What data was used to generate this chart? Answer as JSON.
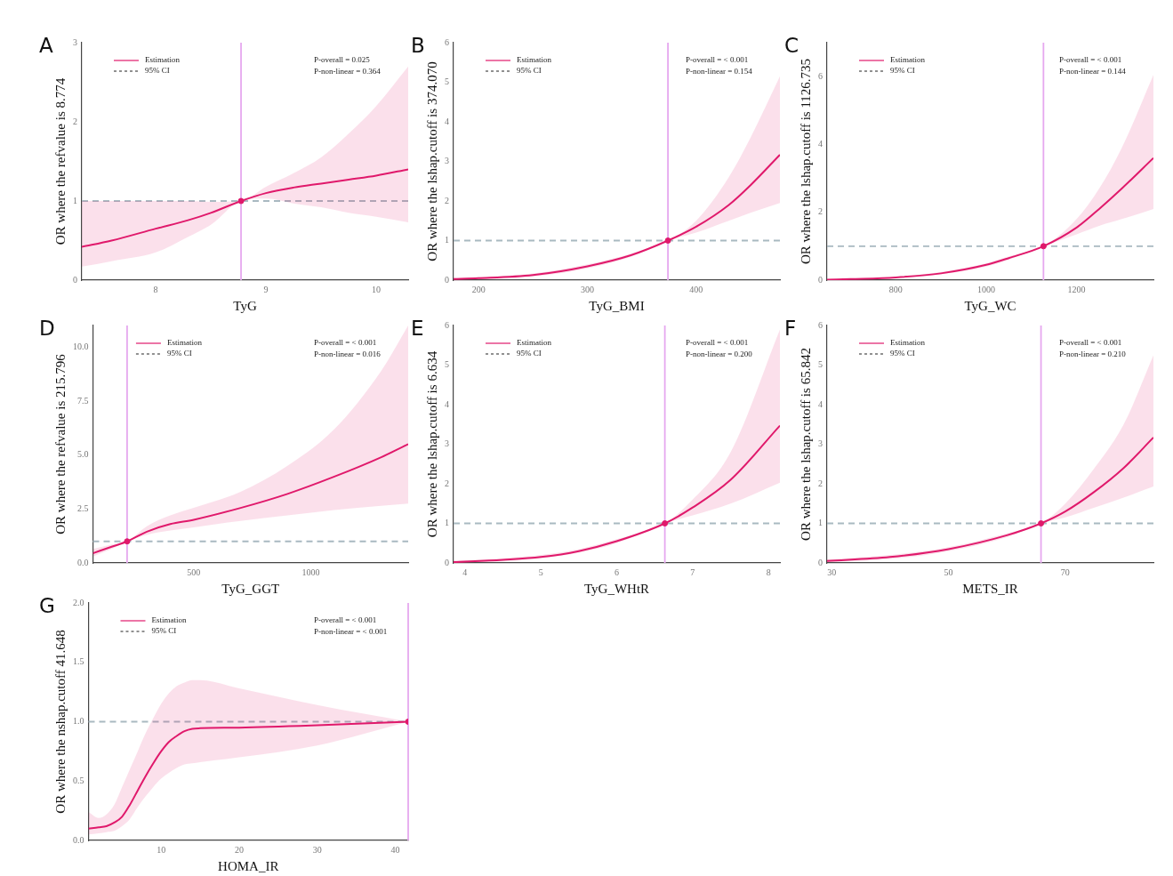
{
  "chart_data": [
    {
      "type": "line",
      "title": "A",
      "xlabel": "TyG",
      "ylabel": "OR where the refvalue is 8.774",
      "xlim": [
        7.33,
        10.29
      ],
      "ylim": [
        0,
        3
      ],
      "xticks": [
        8,
        9,
        10
      ],
      "yticks": [
        0,
        1,
        2,
        3
      ],
      "grid": false,
      "legend": "top left",
      "annotations": [
        "95% CI",
        "P-overall = 0.025",
        "P-non-linear = 0.364"
      ],
      "ref_lines": [
        {
          "axis": "y",
          "value": 1,
          "color": "#a9b9c1",
          "line_style": "dashed"
        },
        {
          "axis": "x",
          "value": 8.774,
          "color": "#e6a8ef"
        }
      ],
      "series": [
        {
          "name": "Estimation",
          "color": "#e0196b",
          "x": [
            7.33,
            7.6,
            8,
            8.3,
            8.5,
            8.774,
            9,
            9.25,
            9.5,
            9.75,
            10,
            10.29
          ],
          "values": [
            0.42,
            0.5,
            0.65,
            0.76,
            0.85,
            1,
            1.1,
            1.17,
            1.22,
            1.27,
            1.32,
            1.4
          ],
          "lower": [
            0.17,
            0.24,
            0.35,
            0.55,
            0.7,
            1,
            1.03,
            0.97,
            0.92,
            0.85,
            0.8,
            0.73
          ],
          "upper": [
            1.0,
            1.0,
            1.0,
            1.0,
            0.99,
            1,
            1.18,
            1.35,
            1.55,
            1.85,
            2.2,
            2.7
          ]
        },
        {
          "type": "scatter",
          "color": "#e0196b",
          "x": [
            8.774
          ],
          "values": [
            1
          ]
        }
      ]
    },
    {
      "type": "line",
      "title": "B",
      "xlabel": "TyG_BMI",
      "ylabel": "OR where the lshap.cutoff is 374.070",
      "xlim": [
        177,
        477
      ],
      "ylim": [
        0,
        6
      ],
      "xticks": [
        200,
        300,
        400
      ],
      "yticks": [
        0,
        1,
        2,
        3,
        4,
        5,
        6
      ],
      "grid": false,
      "legend": "top left",
      "annotations": [
        "95% CI",
        "P-overall = < 0.001",
        "P-non-linear = 0.154"
      ],
      "ref_lines": [
        {
          "axis": "y",
          "value": 1,
          "color": "#a9b9c1",
          "line_style": "dashed"
        },
        {
          "axis": "x",
          "value": 374.07,
          "color": "#e6a8ef"
        }
      ],
      "series": [
        {
          "name": "Estimation",
          "color": "#e0196b",
          "x": [
            177,
            200,
            250,
            300,
            340,
            374.07,
            400,
            430,
            450,
            477
          ],
          "values": [
            0.03,
            0.05,
            0.13,
            0.35,
            0.63,
            1,
            1.35,
            1.9,
            2.4,
            3.17
          ],
          "lower": [
            0.01,
            0.02,
            0.09,
            0.3,
            0.59,
            1,
            1.2,
            1.5,
            1.7,
            1.95
          ],
          "upper": [
            0.06,
            0.08,
            0.17,
            0.4,
            0.67,
            1,
            1.5,
            2.6,
            3.6,
            5.15
          ]
        },
        {
          "type": "scatter",
          "color": "#e0196b",
          "x": [
            374.07
          ],
          "values": [
            1
          ]
        }
      ]
    },
    {
      "type": "line",
      "title": "C",
      "xlabel": "TyG_WC",
      "ylabel": "OR where the lshap.cutoff is 1126.735",
      "xlim": [
        648,
        1370
      ],
      "ylim": [
        0,
        7
      ],
      "xticks": [
        800,
        1000,
        1200
      ],
      "yticks": [
        0,
        2,
        4,
        6
      ],
      "grid": false,
      "legend": "top left",
      "annotations": [
        "95% CI",
        "P-overall = < 0.001",
        "P-non-linear = 0.144"
      ],
      "ref_lines": [
        {
          "axis": "y",
          "value": 1,
          "color": "#a9b9c1",
          "line_style": "dashed"
        },
        {
          "axis": "x",
          "value": 1126.735,
          "color": "#e6a8ef"
        }
      ],
      "series": [
        {
          "name": "Estimation",
          "color": "#e0196b",
          "x": [
            648,
            700,
            800,
            900,
            1000,
            1050,
            1126.735,
            1200,
            1250,
            1300,
            1370
          ],
          "values": [
            0.01,
            0.03,
            0.08,
            0.2,
            0.45,
            0.65,
            1,
            1.55,
            2.1,
            2.7,
            3.6
          ],
          "lower": [
            0,
            0.01,
            0.06,
            0.17,
            0.4,
            0.6,
            1,
            1.35,
            1.6,
            1.8,
            2.1
          ],
          "upper": [
            0.02,
            0.04,
            0.1,
            0.24,
            0.5,
            0.7,
            1,
            1.8,
            2.7,
            3.9,
            6.05
          ]
        },
        {
          "type": "scatter",
          "color": "#e0196b",
          "x": [
            1126.735
          ],
          "values": [
            1
          ]
        }
      ]
    },
    {
      "type": "line",
      "title": "D",
      "xlabel": "TyG_GGT",
      "ylabel": "OR where the refvalue is 215.796",
      "xlim": [
        70,
        1415
      ],
      "ylim": [
        0,
        11
      ],
      "xticks": [
        500,
        1000
      ],
      "yticks": [
        {
          "value": 0,
          "label": "0.0"
        },
        {
          "value": 2.5,
          "label": "2.5"
        },
        {
          "value": 5,
          "label": "5.0"
        },
        {
          "value": 7.5,
          "label": "7.5"
        },
        {
          "value": 10,
          "label": "10.0"
        }
      ],
      "grid": false,
      "legend": "top left",
      "annotations": [
        "95% CI",
        "P-overall = < 0.001",
        "P-non-linear = 0.016"
      ],
      "ref_lines": [
        {
          "axis": "y",
          "value": 1,
          "color": "#a9b9c1",
          "line_style": "dashed"
        },
        {
          "axis": "x",
          "value": 215.796,
          "color": "#e6a8ef"
        }
      ],
      "series": [
        {
          "name": "Estimation",
          "color": "#e0196b",
          "x": [
            70,
            150,
            215.796,
            300,
            400,
            500,
            700,
            900,
            1100,
            1300,
            1415
          ],
          "values": [
            0.45,
            0.75,
            1,
            1.45,
            1.8,
            2.0,
            2.55,
            3.2,
            4.0,
            4.9,
            5.5
          ],
          "lower": [
            0.3,
            0.65,
            1,
            1.3,
            1.5,
            1.65,
            1.95,
            2.2,
            2.45,
            2.65,
            2.75
          ],
          "upper": [
            0.65,
            0.85,
            1,
            1.7,
            2.2,
            2.55,
            3.3,
            4.5,
            6.2,
            8.9,
            11.0
          ]
        },
        {
          "type": "scatter",
          "color": "#e0196b",
          "x": [
            215.796
          ],
          "values": [
            1
          ]
        }
      ]
    },
    {
      "type": "line",
      "title": "E",
      "xlabel": "TyG_WHtR",
      "ylabel": "OR where the lshap.cutoff is 6.634",
      "xlim": [
        3.85,
        8.15
      ],
      "ylim": [
        0,
        6
      ],
      "xticks": [
        4,
        5,
        6,
        7,
        8
      ],
      "yticks": [
        0,
        1,
        2,
        3,
        4,
        5,
        6
      ],
      "grid": false,
      "legend": "top left",
      "annotations": [
        "95% CI",
        "P-overall = < 0.001",
        "P-non-linear = 0.200"
      ],
      "ref_lines": [
        {
          "axis": "y",
          "value": 1,
          "color": "#a9b9c1",
          "line_style": "dashed"
        },
        {
          "axis": "x",
          "value": 6.634,
          "color": "#e6a8ef"
        }
      ],
      "series": [
        {
          "name": "Estimation",
          "color": "#e0196b",
          "x": [
            3.85,
            4.5,
            5,
            5.5,
            6,
            6.634,
            7,
            7.5,
            8.15
          ],
          "values": [
            0.02,
            0.08,
            0.15,
            0.3,
            0.55,
            1,
            1.4,
            2.1,
            3.47
          ],
          "lower": [
            0.01,
            0.04,
            0.12,
            0.26,
            0.5,
            1,
            1.2,
            1.5,
            2.03
          ],
          "upper": [
            0.06,
            0.12,
            0.2,
            0.35,
            0.6,
            1,
            1.6,
            2.8,
            5.9
          ]
        },
        {
          "type": "scatter",
          "color": "#e0196b",
          "x": [
            6.634
          ],
          "values": [
            1
          ]
        }
      ]
    },
    {
      "type": "line",
      "title": "F",
      "xlabel": "METS_IR",
      "ylabel": "OR where the lshap.cutoff is 65.842",
      "xlim": [
        29.2,
        85.1
      ],
      "ylim": [
        0,
        6
      ],
      "xticks": [
        30,
        50,
        70
      ],
      "yticks": [
        0,
        1,
        2,
        3,
        4,
        5,
        6
      ],
      "grid": false,
      "legend": "top left",
      "annotations": [
        "95% CI",
        "P-overall = < 0.001",
        "P-non-linear = 0.210"
      ],
      "ref_lines": [
        {
          "axis": "y",
          "value": 1,
          "color": "#a9b9c1",
          "line_style": "dashed"
        },
        {
          "axis": "x",
          "value": 65.842,
          "color": "#e6a8ef"
        }
      ],
      "series": [
        {
          "name": "Estimation",
          "color": "#e0196b",
          "x": [
            29.2,
            40,
            50,
            60,
            65.842,
            70,
            75,
            80,
            85.1
          ],
          "values": [
            0.05,
            0.15,
            0.35,
            0.7,
            1,
            1.3,
            1.8,
            2.4,
            3.17
          ],
          "lower": [
            0.02,
            0.1,
            0.3,
            0.65,
            1,
            1.15,
            1.4,
            1.65,
            1.93
          ],
          "upper": [
            0.09,
            0.2,
            0.4,
            0.75,
            1,
            1.5,
            2.4,
            3.5,
            5.25
          ]
        },
        {
          "type": "scatter",
          "color": "#e0196b",
          "x": [
            65.842
          ],
          "values": [
            1
          ]
        }
      ]
    },
    {
      "type": "line",
      "title": "G",
      "xlabel": "HOMA_IR",
      "ylabel": "OR where the nshap.cutoff 41.648",
      "xlim": [
        0.7,
        41.648
      ],
      "ylim": [
        0,
        2
      ],
      "xticks": [
        10,
        20,
        30,
        40
      ],
      "yticks": [
        {
          "value": 0,
          "label": "0.0"
        },
        {
          "value": 0.5,
          "label": "0.5"
        },
        {
          "value": 1,
          "label": "1.0"
        },
        {
          "value": 1.5,
          "label": "1.5"
        },
        {
          "value": 2,
          "label": "2.0"
        }
      ],
      "grid": false,
      "legend": "top left",
      "annotations": [
        "95% CI",
        "P-overall = < 0.001",
        "P-non-linear = < 0.001"
      ],
      "ref_lines": [
        {
          "axis": "y",
          "value": 1,
          "color": "#a9b9c1",
          "line_style": "dashed"
        },
        {
          "axis": "x",
          "value": 41.648,
          "color": "#e6a8ef"
        }
      ],
      "series": [
        {
          "name": "Estimation",
          "color": "#e0196b",
          "x": [
            0.7,
            2,
            3,
            4,
            5,
            6,
            7,
            8,
            9,
            10,
            11,
            12,
            13,
            14,
            15,
            20,
            30,
            41.648
          ],
          "values": [
            0.1,
            0.11,
            0.12,
            0.15,
            0.2,
            0.3,
            0.42,
            0.54,
            0.65,
            0.75,
            0.83,
            0.88,
            0.92,
            0.94,
            0.945,
            0.95,
            0.97,
            1
          ],
          "lower": [
            0.05,
            0.06,
            0.07,
            0.08,
            0.12,
            0.18,
            0.28,
            0.37,
            0.45,
            0.52,
            0.57,
            0.61,
            0.64,
            0.65,
            0.66,
            0.7,
            0.8,
            1
          ],
          "upper": [
            0.24,
            0.19,
            0.22,
            0.3,
            0.45,
            0.6,
            0.75,
            0.9,
            1.03,
            1.15,
            1.24,
            1.3,
            1.33,
            1.35,
            1.35,
            1.28,
            1.14,
            1
          ]
        },
        {
          "type": "scatter",
          "color": "#e0196b",
          "x": [
            41.648
          ],
          "values": [
            1
          ]
        }
      ]
    }
  ]
}
